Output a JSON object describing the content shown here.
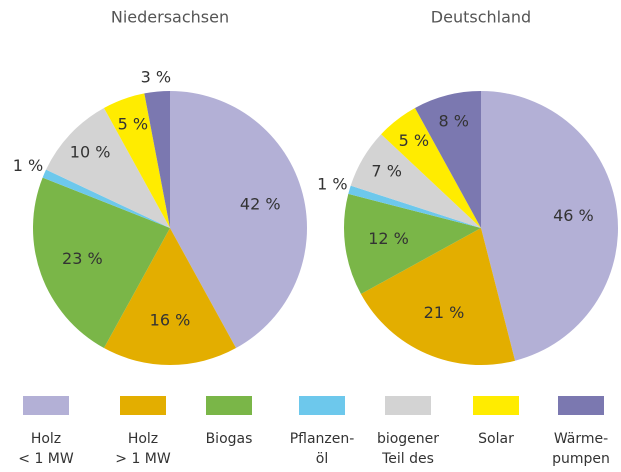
{
  "chart_data": [
    {
      "type": "pie",
      "title": "Niedersachsen",
      "values": [
        42,
        16,
        23,
        1,
        10,
        5,
        3
      ],
      "value_labels": [
        "42 %",
        "16 %",
        "23 %",
        "1 %",
        "10 %",
        "5 %",
        "3 %"
      ]
    },
    {
      "type": "pie",
      "title": "Deutschland",
      "values": [
        46,
        21,
        12,
        1,
        7,
        5,
        8
      ],
      "value_labels": [
        "46 %",
        "21 %",
        "12 %",
        "1 %",
        "7 %",
        "5 %",
        "8 %"
      ]
    }
  ],
  "legend": {
    "labels": [
      [
        "Holz",
        "< 1 MW"
      ],
      [
        "Holz",
        "> 1 MW"
      ],
      [
        "Biogas"
      ],
      [
        "Pflanzen-",
        "öl"
      ],
      [
        "biogener",
        "Teil des"
      ],
      [
        "Solar"
      ],
      [
        "Wärme-",
        "pumpen"
      ]
    ],
    "colors": [
      "#b3b0d6",
      "#e3ae00",
      "#7ab648",
      "#6dc8ec",
      "#d3d3d3",
      "#ffec00",
      "#7b78b0"
    ]
  }
}
